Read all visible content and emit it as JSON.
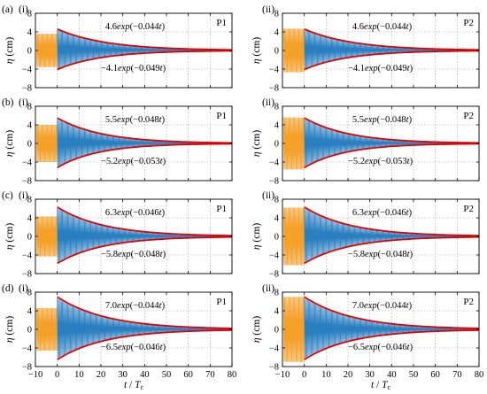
{
  "figure": {
    "y_axis_label": "η (cm)",
    "x_axis_label": "t / Tc",
    "x_ticks": [
      -10,
      0,
      10,
      20,
      30,
      40,
      50,
      60,
      70,
      80
    ],
    "y_ticks": [
      -8,
      -4,
      0,
      4,
      8
    ],
    "colors": {
      "forced": "#f5a028",
      "free": "#2a7fc1",
      "envelope": "#e00000"
    }
  },
  "chart_data": [
    {
      "type": "line",
      "row": "(a)",
      "panel": "(i)",
      "probe": "P1",
      "xlim": [
        -10,
        80
      ],
      "ylim": [
        -8,
        8
      ],
      "forced_amp": 3.6,
      "upper": {
        "a": 4.6,
        "b": 0.044,
        "label": "4.6exp(−0.044t)"
      },
      "lower": {
        "a": 4.1,
        "b": 0.049,
        "label": "−4.1exp(−0.049t)"
      }
    },
    {
      "type": "line",
      "row": "(a)",
      "panel": "(ii)",
      "probe": "P2",
      "xlim": [
        -10,
        80
      ],
      "ylim": [
        -8,
        8
      ],
      "forced_amp": 4.7,
      "upper": {
        "a": 4.6,
        "b": 0.044,
        "label": "4.6exp(−0.044t)"
      },
      "lower": {
        "a": 4.1,
        "b": 0.049,
        "label": "−4.1exp(−0.049t)"
      }
    },
    {
      "type": "line",
      "row": "(b)",
      "panel": "(i)",
      "probe": "P1",
      "xlim": [
        -10,
        80
      ],
      "ylim": [
        -8,
        8
      ],
      "forced_amp": 4.0,
      "upper": {
        "a": 5.5,
        "b": 0.048,
        "label": "5.5exp(−0.048t)"
      },
      "lower": {
        "a": 5.2,
        "b": 0.053,
        "label": "−5.2exp(−0.053t)"
      }
    },
    {
      "type": "line",
      "row": "(b)",
      "panel": "(ii)",
      "probe": "P2",
      "xlim": [
        -10,
        80
      ],
      "ylim": [
        -8,
        8
      ],
      "forced_amp": 5.6,
      "upper": {
        "a": 5.5,
        "b": 0.048,
        "label": "5.5exp(−0.048t)"
      },
      "lower": {
        "a": 5.2,
        "b": 0.053,
        "label": "−5.2exp(−0.053t)"
      }
    },
    {
      "type": "line",
      "row": "(c)",
      "panel": "(i)",
      "probe": "P1",
      "xlim": [
        -10,
        80
      ],
      "ylim": [
        -8,
        8
      ],
      "forced_amp": 4.3,
      "upper": {
        "a": 6.3,
        "b": 0.046,
        "label": "6.3exp(−0.046t)"
      },
      "lower": {
        "a": 5.8,
        "b": 0.048,
        "label": "−5.8exp(−0.048t)"
      }
    },
    {
      "type": "line",
      "row": "(c)",
      "panel": "(ii)",
      "probe": "P2",
      "xlim": [
        -10,
        80
      ],
      "ylim": [
        -8,
        8
      ],
      "forced_amp": 6.2,
      "upper": {
        "a": 6.3,
        "b": 0.046,
        "label": "6.3exp(−0.046t)"
      },
      "lower": {
        "a": 5.8,
        "b": 0.048,
        "label": "−5.8exp(−0.048t)"
      }
    },
    {
      "type": "line",
      "row": "(d)",
      "panel": "(i)",
      "probe": "P1",
      "xlim": [
        -10,
        80
      ],
      "ylim": [
        -8,
        8
      ],
      "forced_amp": 4.6,
      "upper": {
        "a": 7.0,
        "b": 0.044,
        "label": "7.0exp(−0.044t)"
      },
      "lower": {
        "a": 6.5,
        "b": 0.046,
        "label": "−6.5exp(−0.046t)"
      }
    },
    {
      "type": "line",
      "row": "(d)",
      "panel": "(ii)",
      "probe": "P2",
      "xlim": [
        -10,
        80
      ],
      "ylim": [
        -8,
        8
      ],
      "forced_amp": 7.0,
      "upper": {
        "a": 7.0,
        "b": 0.044,
        "label": "7.0exp(−0.044t)"
      },
      "lower": {
        "a": 6.5,
        "b": 0.046,
        "label": "−6.5exp(−0.046t)"
      }
    }
  ]
}
